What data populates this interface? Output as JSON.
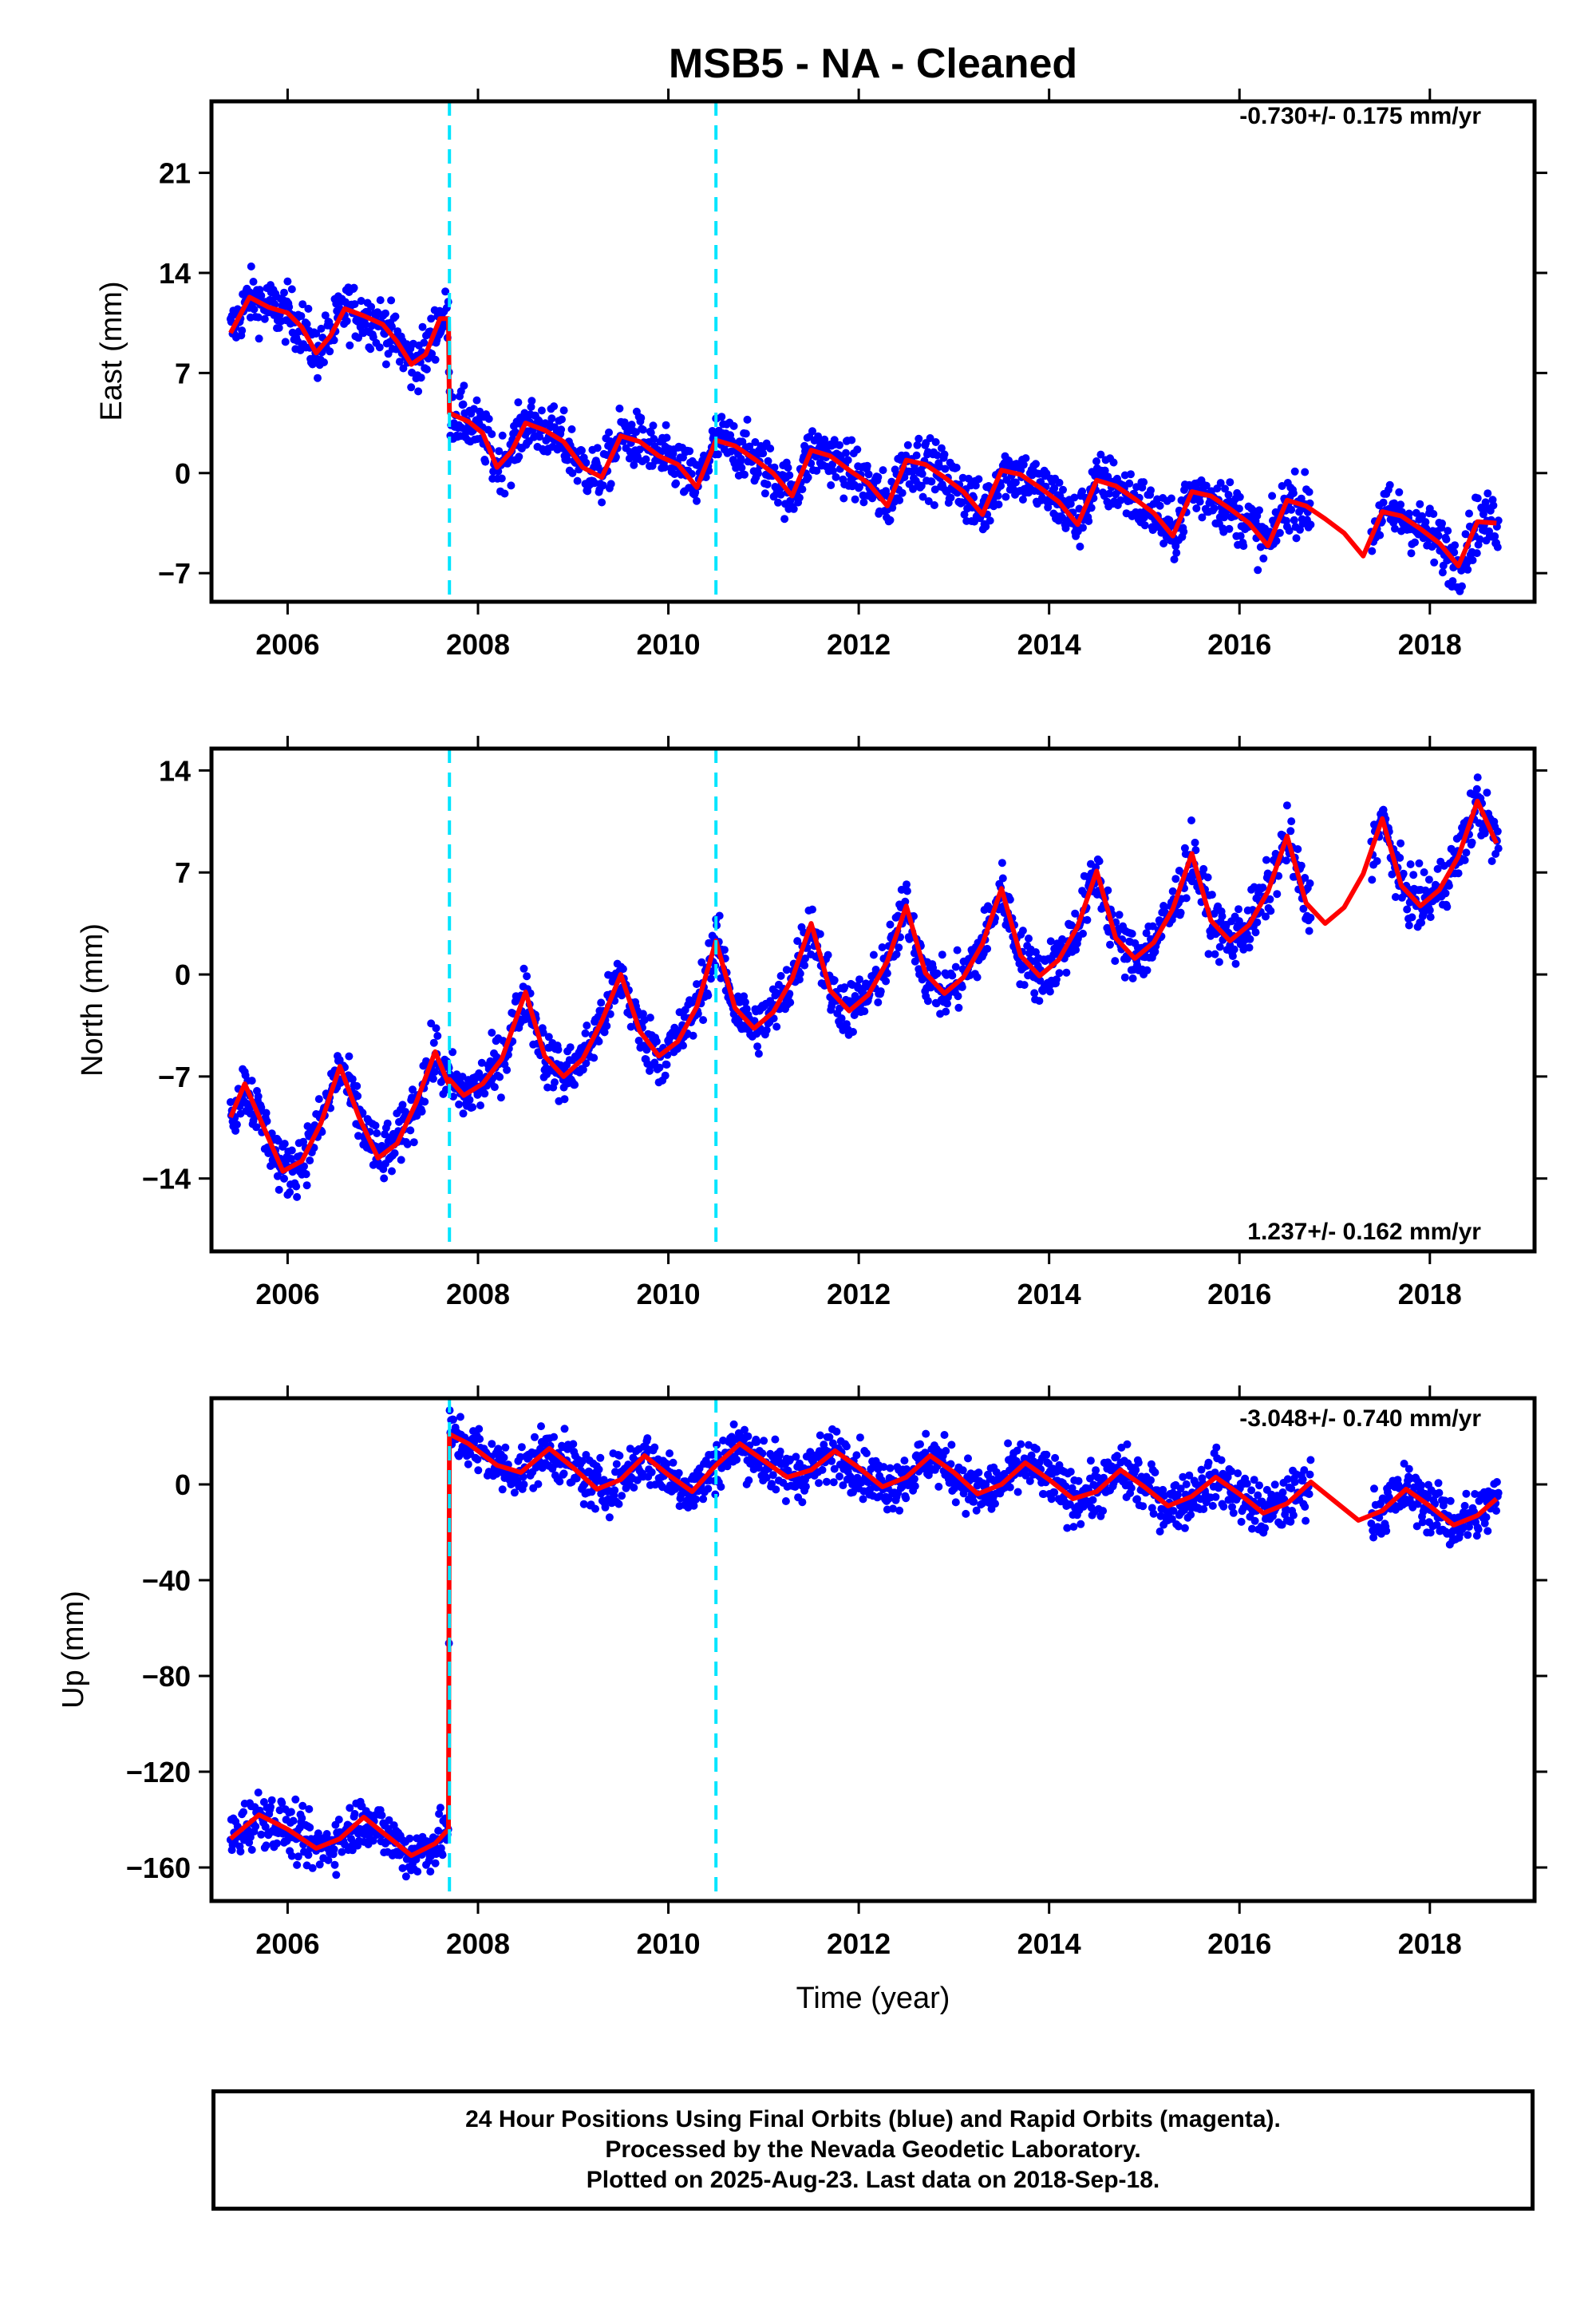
{
  "title": "MSB5  - NA - Cleaned",
  "footer": {
    "line1": "24 Hour Positions Using Final Orbits (blue) and Rapid Orbits (magenta).",
    "line2": "Processed by the Nevada Geodetic Laboratory.",
    "line3": "Plotted on 2025-Aug-23. Last data on 2018-Sep-18."
  },
  "colors": {
    "data_points": "#0000ff",
    "model_line": "#ff0000",
    "event_lines": "#00e5ff"
  },
  "chart_data": [
    {
      "type": "scatter",
      "component": "east",
      "ylabel": "East (mm)",
      "xlabel": "",
      "xlim": [
        2005.2,
        2019.1
      ],
      "ylim": [
        -9,
        26
      ],
      "x_ticks": [
        2006,
        2008,
        2010,
        2012,
        2014,
        2016,
        2018
      ],
      "y_ticks": [
        21,
        14,
        7,
        0,
        -7
      ],
      "y_tick_labels": [
        "21",
        "14",
        "7",
        "0",
        "−7"
      ],
      "event_lines_x": [
        2007.7,
        2010.5
      ],
      "rate": "-0.730+/- 0.175 mm/yr",
      "rate_position": "top-right",
      "model_line": {
        "x": [
          2005.4,
          2005.6,
          2005.8,
          2006.0,
          2006.15,
          2006.3,
          2006.45,
          2006.6,
          2006.8,
          2007.0,
          2007.15,
          2007.3,
          2007.45,
          2007.6,
          2007.69,
          2007.7,
          2007.9,
          2008.05,
          2008.2,
          2008.35,
          2008.5,
          2008.7,
          2008.9,
          2009.1,
          2009.3,
          2009.5,
          2009.7,
          2009.9,
          2010.1,
          2010.3,
          2010.5,
          2010.7,
          2010.9,
          2011.1,
          2011.3,
          2011.5,
          2011.7,
          2011.9,
          2012.1,
          2012.3,
          2012.5,
          2012.7,
          2012.9,
          2013.1,
          2013.3,
          2013.5,
          2013.7,
          2013.9,
          2014.1,
          2014.3,
          2014.5,
          2014.7,
          2014.9,
          2015.1,
          2015.3,
          2015.5,
          2015.7,
          2015.9,
          2016.1,
          2016.3,
          2016.5,
          2016.7,
          2016.9,
          2017.1,
          2017.3,
          2017.5,
          2017.7,
          2017.9,
          2018.1,
          2018.3,
          2018.5,
          2018.7
        ],
        "y": [
          9.8,
          12.3,
          11.6,
          11.2,
          10.2,
          8.4,
          9.6,
          11.5,
          11.0,
          10.4,
          9.2,
          7.6,
          8.3,
          10.8,
          10.8,
          4.2,
          3.6,
          2.8,
          0.4,
          1.5,
          3.5,
          3.0,
          2.2,
          0.4,
          -0.3,
          2.6,
          2.2,
          1.2,
          0.6,
          -1.0,
          2.3,
          1.9,
          1.0,
          0.0,
          -1.6,
          1.6,
          1.2,
          0.2,
          -0.7,
          -2.3,
          0.9,
          0.6,
          -0.3,
          -1.3,
          -2.9,
          0.2,
          -0.1,
          -1.0,
          -2.0,
          -3.6,
          -0.5,
          -0.9,
          -1.8,
          -2.8,
          -4.4,
          -1.3,
          -1.6,
          -2.5,
          -3.5,
          -5.1,
          -1.9,
          -2.3,
          -3.2,
          -4.2,
          -5.8,
          -2.7,
          -3.0,
          -3.9,
          -4.9,
          -6.5,
          -3.4,
          -3.5
        ]
      }
    },
    {
      "type": "scatter",
      "component": "north",
      "ylabel": "North (mm)",
      "xlabel": "",
      "xlim": [
        2005.2,
        2019.1
      ],
      "ylim": [
        -19,
        15.5
      ],
      "x_ticks": [
        2006,
        2008,
        2010,
        2012,
        2014,
        2016,
        2018
      ],
      "y_ticks": [
        14,
        7,
        0,
        -7,
        -14
      ],
      "y_tick_labels": [
        "14",
        "7",
        "0",
        "−7",
        "−14"
      ],
      "event_lines_x": [
        2007.7,
        2010.5
      ],
      "rate": "1.237+/- 0.162 mm/yr",
      "rate_position": "bottom-right",
      "model_line": {
        "x": [
          2005.4,
          2005.55,
          2005.75,
          2005.95,
          2006.15,
          2006.35,
          2006.55,
          2006.75,
          2006.95,
          2007.15,
          2007.35,
          2007.55,
          2007.69,
          2007.7,
          2007.85,
          2008.05,
          2008.25,
          2008.5,
          2008.7,
          2008.9,
          2009.1,
          2009.3,
          2009.5,
          2009.7,
          2009.9,
          2010.1,
          2010.3,
          2010.5,
          2010.7,
          2010.9,
          2011.1,
          2011.3,
          2011.5,
          2011.7,
          2011.9,
          2012.1,
          2012.3,
          2012.5,
          2012.7,
          2012.9,
          2013.1,
          2013.3,
          2013.5,
          2013.7,
          2013.9,
          2014.1,
          2014.3,
          2014.5,
          2014.7,
          2014.9,
          2015.1,
          2015.3,
          2015.5,
          2015.7,
          2015.9,
          2016.1,
          2016.3,
          2016.5,
          2016.7,
          2016.9,
          2017.1,
          2017.3,
          2017.5,
          2017.7,
          2017.9,
          2018.1,
          2018.3,
          2018.5,
          2018.7
        ],
        "y": [
          -9.8,
          -7.5,
          -10.5,
          -13.5,
          -12.8,
          -10.2,
          -6.3,
          -9.8,
          -12.6,
          -11.6,
          -8.8,
          -5.3,
          -7.5,
          -7.2,
          -8.3,
          -7.5,
          -5.8,
          -1.2,
          -5.6,
          -7.0,
          -5.8,
          -3.2,
          0.0,
          -3.9,
          -5.6,
          -4.6,
          -2.2,
          2.3,
          -2.3,
          -3.7,
          -2.6,
          -0.3,
          3.5,
          -1.1,
          -2.5,
          -1.4,
          0.9,
          4.7,
          0.1,
          -1.3,
          -0.2,
          2.1,
          5.9,
          1.3,
          -0.1,
          1.0,
          3.3,
          7.1,
          2.5,
          1.1,
          2.2,
          4.5,
          8.3,
          3.7,
          2.3,
          3.4,
          5.7,
          9.5,
          4.9,
          3.5,
          4.6,
          6.9,
          10.7,
          6.1,
          4.7,
          5.8,
          8.1,
          11.9,
          9.0
        ]
      }
    },
    {
      "type": "scatter",
      "component": "up",
      "ylabel": "Up (mm)",
      "xlabel": "Time (year)",
      "xlim": [
        2005.2,
        2019.1
      ],
      "ylim": [
        -174,
        36
      ],
      "x_ticks": [
        2006,
        2008,
        2010,
        2012,
        2014,
        2016,
        2018
      ],
      "x_tick_labels": [
        "2006",
        "2008",
        "2010",
        "2012",
        "2014",
        "2016",
        "2018"
      ],
      "y_ticks": [
        0,
        -40,
        -80,
        -120,
        -160
      ],
      "y_tick_labels": [
        "0",
        "−40",
        "−80",
        "−120",
        "−160"
      ],
      "event_lines_x": [
        2007.7,
        2010.5
      ],
      "rate": "-3.048+/- 0.740 mm/yr",
      "rate_position": "top-right",
      "model_line": {
        "x": [
          2005.4,
          2005.7,
          2006.0,
          2006.3,
          2006.55,
          2006.8,
          2007.05,
          2007.3,
          2007.55,
          2007.69,
          2007.7,
          2007.9,
          2008.2,
          2008.45,
          2008.75,
          2009.0,
          2009.25,
          2009.5,
          2009.75,
          2010.0,
          2010.25,
          2010.5,
          2010.75,
          2011.0,
          2011.25,
          2011.5,
          2011.75,
          2012.0,
          2012.25,
          2012.5,
          2012.75,
          2013.0,
          2013.25,
          2013.5,
          2013.75,
          2014.0,
          2014.25,
          2014.5,
          2014.75,
          2015.0,
          2015.25,
          2015.5,
          2015.75,
          2016.0,
          2016.25,
          2016.5,
          2016.75,
          2017.0,
          2017.25,
          2017.5,
          2017.75,
          2018.0,
          2018.25,
          2018.5,
          2018.7
        ],
        "y": [
          -148,
          -138,
          -144,
          -152,
          -148,
          -139,
          -147,
          -155,
          -150,
          -144,
          21,
          17,
          8,
          5,
          15,
          7,
          -2,
          2,
          12,
          4,
          -3,
          8,
          17,
          10,
          3,
          6,
          14,
          7,
          -1,
          3,
          12,
          5,
          -4,
          0,
          9,
          2,
          -6,
          -3,
          6,
          -1,
          -9,
          -5,
          3,
          -4,
          -12,
          -8,
          1,
          -7,
          -15,
          -11,
          -2,
          -9,
          -17,
          -13,
          -6
        ]
      }
    }
  ]
}
